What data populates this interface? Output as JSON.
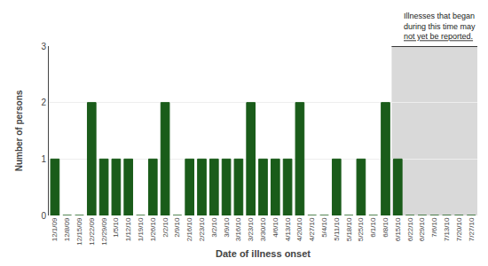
{
  "chart_data": {
    "type": "bar",
    "categories": [
      "12/1/09",
      "12/8/09",
      "12/15/09",
      "12/22/09",
      "12/29/09",
      "1/5/10",
      "1/12/10",
      "1/19/10",
      "1/26/10",
      "2/2/10",
      "2/9/10",
      "2/16/10",
      "2/23/10",
      "3/2/10",
      "3/9/10",
      "3/16/10",
      "3/23/10",
      "3/30/10",
      "4/6/10",
      "4/13/10",
      "4/20/10",
      "4/27/10",
      "5/4/10",
      "5/11/10",
      "5/18/10",
      "5/25/10",
      "6/1/10",
      "6/8/10",
      "6/15/10",
      "6/22/10",
      "6/29/10",
      "7/6/10",
      "7/13/10",
      "7/20/10",
      "7/27/10"
    ],
    "values": [
      1,
      0,
      0,
      2,
      1,
      1,
      1,
      0,
      1,
      2,
      0,
      1,
      1,
      1,
      1,
      1,
      2,
      1,
      1,
      1,
      2,
      0,
      0,
      1,
      0,
      1,
      0,
      2,
      1,
      0,
      0,
      0,
      0,
      0,
      0
    ],
    "color": "#1a5c1a",
    "xlabel": "Date of illness onset",
    "ylabel": "Number of persons",
    "ylim": [
      0,
      3
    ],
    "yticks": [
      0,
      1,
      2,
      3
    ],
    "grid": true,
    "shaded_region": {
      "from": "6/15/10",
      "to": "7/27/10",
      "color": "#d9d9d9"
    },
    "annotations": [
      "Illnesses that began",
      "during this time may",
      "not yet be reported."
    ]
  }
}
